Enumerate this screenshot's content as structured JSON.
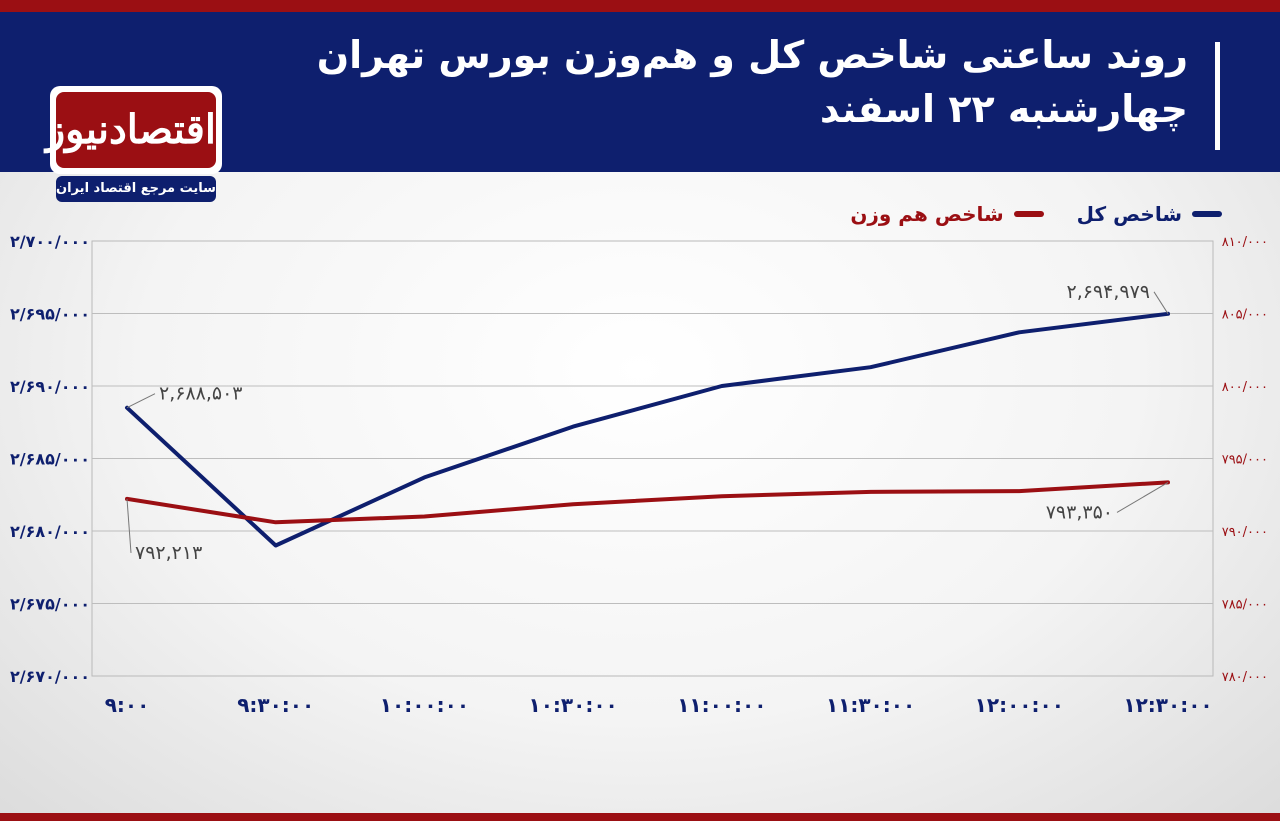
{
  "header": {
    "title_line1": "روند ساعتی شاخص کل و هم‌وزن بورس تهران",
    "title_line2": "چهارشنبه ۲۲ اسفند"
  },
  "logo": {
    "name": "اقتصادنیوز",
    "tagline": "سایت مرجع اقتصاد ایران"
  },
  "colors": {
    "header_bg": "#0e1f6e",
    "accent_red": "#9b0f13",
    "series_total": "#0e1f6e",
    "series_equal": "#9b0f13"
  },
  "chart_data": {
    "type": "line",
    "legend_position": "top-right",
    "grid": true,
    "categories": [
      "۹:۰۰",
      "۹:۳۰:۰۰",
      "۱۰:۰۰:۰۰",
      "۱۰:۳۰:۰۰",
      "۱۱:۰۰:۰۰",
      "۱۱:۳۰:۰۰",
      "۱۲:۰۰:۰۰",
      "۱۲:۳۰:۰۰"
    ],
    "y_left": {
      "min": 2670000,
      "max": 2700000,
      "tick_labels": [
        "۲/۷۰۰/۰۰۰",
        "۲/۶۹۵/۰۰۰",
        "۲/۶۹۰/۰۰۰",
        "۲/۶۸۵/۰۰۰",
        "۲/۶۸۰/۰۰۰",
        "۲/۶۷۵/۰۰۰",
        "۲/۶۷۰/۰۰۰"
      ]
    },
    "y_right": {
      "min": 780000,
      "max": 810000,
      "tick_labels": [
        "۸۱۰/۰۰۰",
        "۸۰۵/۰۰۰",
        "۸۰۰/۰۰۰",
        "۷۹۵/۰۰۰",
        "۷۹۰/۰۰۰",
        "۷۸۵/۰۰۰",
        "۷۸۰/۰۰۰"
      ]
    },
    "series": [
      {
        "name": "شاخص کل",
        "axis": "left",
        "color": "#0e1f6e",
        "values": [
          2688503,
          2679000,
          2683700,
          2687200,
          2690000,
          2691300,
          2693700,
          2694979
        ]
      },
      {
        "name": "شاخص هم وزن",
        "axis": "right",
        "color": "#9b0f13",
        "values": [
          792213,
          790600,
          791000,
          791850,
          792400,
          792700,
          792750,
          793350
        ]
      }
    ],
    "annotations": [
      {
        "series": 0,
        "index": 0,
        "text": "۲,۶۸۸,۵۰۳"
      },
      {
        "series": 0,
        "index": 7,
        "text": "۲,۶۹۴,۹۷۹"
      },
      {
        "series": 1,
        "index": 0,
        "text": "۷۹۲,۲۱۳"
      },
      {
        "series": 1,
        "index": 7,
        "text": "۷۹۳,۳۵۰"
      }
    ]
  }
}
